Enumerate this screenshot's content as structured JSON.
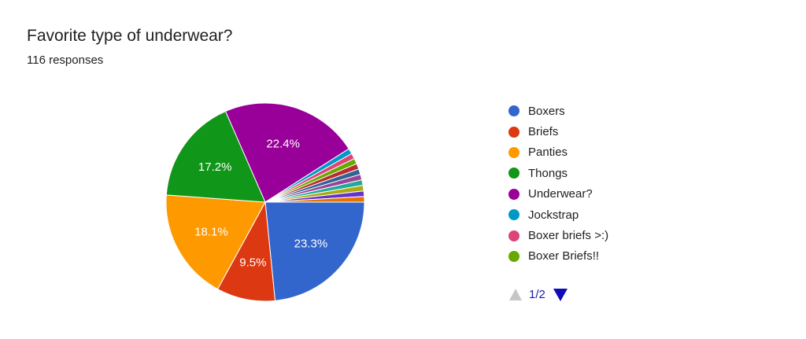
{
  "header": {
    "title": "Favorite type of underwear?",
    "subtitle": "116 responses"
  },
  "pager": {
    "label": "1/2"
  },
  "chart_data": {
    "type": "pie",
    "title": "Favorite type of underwear?",
    "legend_position": "right",
    "slices": [
      {
        "label": "Boxers",
        "value": 23.3,
        "color": "#3366cc",
        "show_label": true
      },
      {
        "label": "Briefs",
        "value": 9.5,
        "color": "#dc3912",
        "show_label": true
      },
      {
        "label": "Panties",
        "value": 18.1,
        "color": "#ff9900",
        "show_label": true
      },
      {
        "label": "Thongs",
        "value": 17.2,
        "color": "#109618",
        "show_label": true
      },
      {
        "label": "Underwear?",
        "value": 22.4,
        "color": "#990099",
        "show_label": true
      },
      {
        "label": "Jockstrap",
        "value": 0.9,
        "color": "#0099c6",
        "show_label": false
      },
      {
        "label": "Boxer briefs >:)",
        "value": 0.9,
        "color": "#dd4477",
        "show_label": false
      },
      {
        "label": "Boxer Briefs!!",
        "value": 0.9,
        "color": "#66aa00",
        "show_label": false
      },
      {
        "label": "",
        "value": 0.9,
        "color": "#b82e2e",
        "show_label": false
      },
      {
        "label": "",
        "value": 0.9,
        "color": "#316395",
        "show_label": false
      },
      {
        "label": "",
        "value": 0.9,
        "color": "#994499",
        "show_label": false
      },
      {
        "label": "",
        "value": 0.9,
        "color": "#22aa99",
        "show_label": false
      },
      {
        "label": "",
        "value": 0.9,
        "color": "#aaaa11",
        "show_label": false
      },
      {
        "label": "",
        "value": 0.9,
        "color": "#6633cc",
        "show_label": false
      },
      {
        "label": "",
        "value": 0.9,
        "color": "#e67300",
        "show_label": false
      }
    ],
    "legend_visible": [
      "Boxers",
      "Briefs",
      "Panties",
      "Thongs",
      "Underwear?",
      "Jockstrap",
      "Boxer briefs >:)",
      "Boxer Briefs!!"
    ]
  }
}
